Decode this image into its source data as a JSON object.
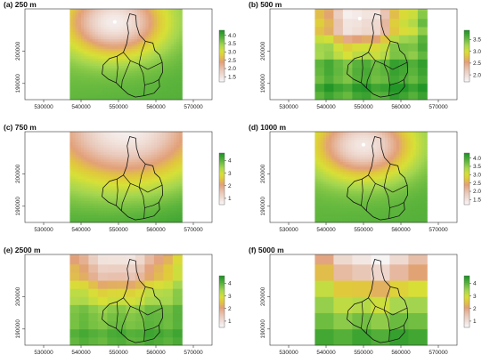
{
  "figure": {
    "panel_count": 6,
    "colormap": "terrain-reversed (white to salmon to yellow to green)",
    "colors": {
      "low": "#f7f4f4",
      "mid_low": "#e4a885",
      "mid": "#e3d83a",
      "high": "#2e9b2e"
    }
  },
  "chart_data": [
    {
      "type": "heatmap",
      "title": "(a) 250 m",
      "xlim": [
        525000,
        575000
      ],
      "ylim": [
        185000,
        213000
      ],
      "x_ticks": [
        "530000",
        "540000",
        "550000",
        "560000",
        "570000"
      ],
      "y_ticks": [
        "190000",
        "200000"
      ],
      "raster_extent": {
        "x": [
          537000,
          567000
        ],
        "y": [
          185000,
          213000
        ]
      },
      "legend": {
        "ticks": [
          "4.0",
          "3.5",
          "3.0",
          "2.5",
          "2.0",
          "1.5"
        ],
        "range": [
          1.2,
          4.3
        ]
      },
      "field": {
        "base": 3.7,
        "gradient": 0.15,
        "hotspot_center": [
          549000,
          209000
        ],
        "hotspot_min": 1.3,
        "hotspot_radius": 9000,
        "blockiness": 0
      }
    },
    {
      "type": "heatmap",
      "title": "(b) 500 m",
      "xlim": [
        525000,
        575000
      ],
      "ylim": [
        185000,
        213000
      ],
      "x_ticks": [
        "530000",
        "540000",
        "550000",
        "560000",
        "570000"
      ],
      "y_ticks": [
        "190000",
        "200000"
      ],
      "raster_extent": {
        "x": [
          537000,
          567000
        ],
        "y": [
          185000,
          213000
        ]
      },
      "legend": {
        "ticks": [
          "3.5",
          "3.0",
          "2.5",
          "2.0"
        ],
        "range": [
          1.7,
          3.9
        ]
      },
      "field": {
        "base": 3.45,
        "gradient": 0.25,
        "hotspot_center": [
          549000,
          210000
        ],
        "hotspot_min": 1.7,
        "hotspot_radius": 8000,
        "blockiness": 2500
      }
    },
    {
      "type": "heatmap",
      "title": "(c) 750 m",
      "xlim": [
        525000,
        575000
      ],
      "ylim": [
        185000,
        213000
      ],
      "x_ticks": [
        "530000",
        "540000",
        "550000",
        "560000",
        "570000"
      ],
      "y_ticks": [
        "190000",
        "200000"
      ],
      "raster_extent": {
        "x": [
          537000,
          567000
        ],
        "y": [
          185000,
          213000
        ]
      },
      "legend": {
        "ticks": [
          "4",
          "3",
          "2",
          "1"
        ],
        "range": [
          0.5,
          4.6
        ]
      },
      "field": {
        "base": 3.9,
        "gradient": 0.35,
        "hotspot_center": [
          552000,
          214000
        ],
        "hotspot_min": 0.6,
        "hotspot_radius": 15000,
        "blockiness": 0
      }
    },
    {
      "type": "heatmap",
      "title": "(d) 1000 m",
      "xlim": [
        525000,
        575000
      ],
      "ylim": [
        185000,
        213000
      ],
      "x_ticks": [
        "530000",
        "540000",
        "550000",
        "560000",
        "570000"
      ],
      "y_ticks": [
        "190000",
        "200000"
      ],
      "raster_extent": {
        "x": [
          537000,
          567000
        ],
        "y": [
          185000,
          213000
        ]
      },
      "legend": {
        "ticks": [
          "4.0",
          "3.5",
          "3.0",
          "2.5",
          "2.0",
          "1.5"
        ],
        "range": [
          1.2,
          4.3
        ]
      },
      "field": {
        "base": 3.75,
        "gradient": 0.12,
        "hotspot_center": [
          550000,
          209000
        ],
        "hotspot_min": 1.4,
        "hotspot_radius": 9000,
        "blockiness": 0
      }
    },
    {
      "type": "heatmap",
      "title": "(e) 2500 m",
      "xlim": [
        525000,
        575000
      ],
      "ylim": [
        185000,
        213000
      ],
      "x_ticks": [
        "530000",
        "540000",
        "550000",
        "560000",
        "570000"
      ],
      "y_ticks": [
        "190000",
        "200000"
      ],
      "raster_extent": {
        "x": [
          537000,
          567000
        ],
        "y": [
          185000,
          213000
        ]
      },
      "legend": {
        "ticks": [
          "4",
          "3",
          "2",
          "1"
        ],
        "range": [
          0.5,
          4.6
        ]
      },
      "field": {
        "base": 3.8,
        "gradient": 0.3,
        "hotspot_center": [
          550000,
          213000
        ],
        "hotspot_min": 0.7,
        "hotspot_radius": 11000,
        "blockiness": 2500
      }
    },
    {
      "type": "heatmap",
      "title": "(f) 5000 m",
      "xlim": [
        525000,
        575000
      ],
      "ylim": [
        185000,
        213000
      ],
      "x_ticks": [
        "530000",
        "540000",
        "550000",
        "560000",
        "570000"
      ],
      "y_ticks": [
        "190000",
        "200000"
      ],
      "raster_extent": {
        "x": [
          537000,
          567000
        ],
        "y": [
          185000,
          213000
        ]
      },
      "legend": {
        "ticks": [
          "4",
          "3",
          "2",
          "1"
        ],
        "range": [
          0.5,
          4.6
        ]
      },
      "field": {
        "base": 3.9,
        "gradient": 0.35,
        "hotspot_center": [
          553000,
          214000
        ],
        "hotspot_min": 0.6,
        "hotspot_radius": 13000,
        "blockiness": 5000
      }
    }
  ]
}
